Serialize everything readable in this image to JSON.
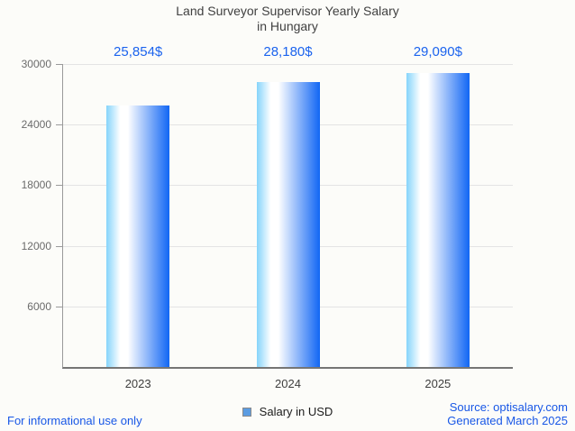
{
  "title": {
    "line1": "Land Surveyor Supervisor Yearly Salary",
    "line2": "in Hungary"
  },
  "chart_data": {
    "type": "bar",
    "title": "Land Surveyor Supervisor Yearly Salary in Hungary",
    "categories": [
      "2023",
      "2024",
      "2025"
    ],
    "series": [
      {
        "name": "Salary in USD",
        "values": [
          25854,
          28180,
          29090
        ],
        "value_labels": [
          "25,854$",
          "28,180$",
          "29,090$"
        ]
      }
    ],
    "xlabel": "",
    "ylabel": "",
    "ylim": [
      0,
      30000
    ],
    "yticks": [
      6000,
      12000,
      18000,
      24000,
      30000
    ],
    "grid": true,
    "legend_position": "bottom",
    "bar_gradient": [
      "#85d4fb",
      "#ffffff",
      "#1166f4"
    ]
  },
  "legend": {
    "label": "Salary in USD",
    "swatch_color": "#5b9ce2",
    "swatch_border": "#8a8a8a"
  },
  "footers": {
    "left": "For informational use only",
    "source": "Source: optisalary.com",
    "generated": "Generated March 2025"
  },
  "colors": {
    "accent_blue": "#1b63ee",
    "footer_blue": "#1857e6",
    "title_gray": "#404040",
    "axis_label_gray": "#6b6b6b",
    "x_label_gray": "#3e3e3e",
    "grid_gray": "#e4e4e4",
    "axis_line": "#9a9a9a",
    "x_axis_line": "#757575"
  }
}
